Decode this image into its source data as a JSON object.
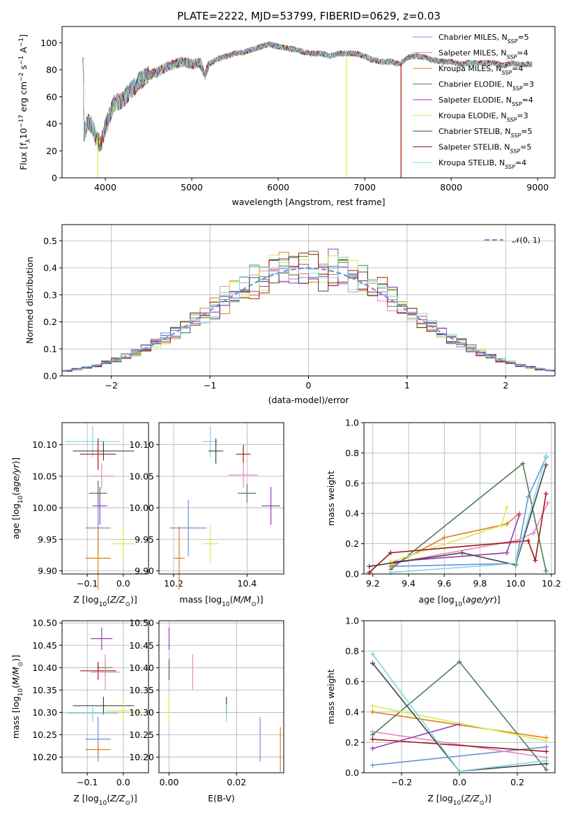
{
  "colors": {
    "chabrier_miles": "#6f8fd8",
    "salpeter_miles": "#e38ac3",
    "kroupa_miles": "#e07d1c",
    "chabrier_elodie": "#4d7f5a",
    "salpeter_elodie": "#9a3cb6",
    "kroupa_elodie": "#d4ec4a",
    "chabrier_stelib": "#444444",
    "salpeter_stelib": "#a01414",
    "kroupa_stelib": "#7fd8e0",
    "normal_curve": "#6f8fd8"
  },
  "chart_data": [
    {
      "type": "line",
      "title": "PLATE=2222, MJD=53799, FIBERID=0629, z=0.03",
      "xlabel": "wavelength [Angstrom, rest frame]",
      "ylabel": "Flux [fλ10⁻¹⁷ erg cm⁻² s⁻¹ A⁻¹]",
      "xlim": [
        3500,
        9200
      ],
      "ylim": [
        0,
        112
      ],
      "xticks": [
        4000,
        5000,
        6000,
        7000,
        8000,
        9000
      ],
      "yticks": [
        0,
        20,
        40,
        60,
        80,
        100
      ],
      "legend_position": "top-right",
      "grid": false,
      "legend": [
        {
          "label": "Chabrier MILES, N",
          "sub": "SSP",
          "suffix": "=5",
          "color_key": "chabrier_miles"
        },
        {
          "label": "Salpeter MILES, N",
          "sub": "SSP",
          "suffix": "=4",
          "color_key": "salpeter_miles"
        },
        {
          "label": "Kroupa MILES, N",
          "sub": "SSP",
          "suffix": "=4",
          "color_key": "kroupa_miles"
        },
        {
          "label": "Chabrier ELODIE, N",
          "sub": "SSP",
          "suffix": "=3",
          "color_key": "chabrier_elodie"
        },
        {
          "label": "Salpeter ELODIE, N",
          "sub": "SSP",
          "suffix": "=4",
          "color_key": "salpeter_elodie"
        },
        {
          "label": "Kroupa ELODIE, N",
          "sub": "SSP",
          "suffix": "=3",
          "color_key": "kroupa_elodie"
        },
        {
          "label": "Chabrier STELIB, N",
          "sub": "SSP",
          "suffix": "=5",
          "color_key": "chabrier_stelib"
        },
        {
          "label": "Salpeter STELIB, N",
          "sub": "SSP",
          "suffix": "=5",
          "color_key": "salpeter_stelib"
        },
        {
          "label": "Kroupa STELIB, N",
          "sub": "SSP",
          "suffix": "=4",
          "color_key": "kroupa_stelib"
        }
      ],
      "spectrum_anchors": [
        [
          3750,
          32
        ],
        [
          3800,
          42
        ],
        [
          3850,
          38
        ],
        [
          3900,
          28
        ],
        [
          3950,
          25
        ],
        [
          4000,
          38
        ],
        [
          4050,
          46
        ],
        [
          4100,
          55
        ],
        [
          4200,
          58
        ],
        [
          4300,
          65
        ],
        [
          4400,
          72
        ],
        [
          4500,
          76
        ],
        [
          4600,
          78
        ],
        [
          4700,
          82
        ],
        [
          4800,
          84
        ],
        [
          4900,
          86
        ],
        [
          5000,
          84
        ],
        [
          5100,
          85
        ],
        [
          5150,
          76
        ],
        [
          5200,
          84
        ],
        [
          5300,
          88
        ],
        [
          5400,
          90
        ],
        [
          5500,
          92
        ],
        [
          5600,
          93
        ],
        [
          5700,
          95
        ],
        [
          5800,
          97
        ],
        [
          5900,
          99
        ],
        [
          6000,
          97
        ],
        [
          6100,
          96
        ],
        [
          6200,
          95
        ],
        [
          6300,
          93
        ],
        [
          6400,
          92
        ],
        [
          6500,
          92
        ],
        [
          6600,
          90
        ],
        [
          6700,
          92
        ],
        [
          6800,
          92
        ],
        [
          6900,
          92
        ],
        [
          7000,
          90
        ],
        [
          7100,
          87
        ],
        [
          7200,
          86
        ],
        [
          7300,
          86
        ],
        [
          7400,
          84
        ],
        [
          7500,
          89
        ],
        [
          7600,
          90
        ],
        [
          7700,
          89
        ],
        [
          7800,
          87
        ],
        [
          7900,
          86
        ],
        [
          8000,
          86
        ],
        [
          8100,
          84
        ],
        [
          8200,
          85
        ],
        [
          8300,
          85
        ],
        [
          8400,
          85
        ],
        [
          8500,
          85
        ],
        [
          8600,
          83
        ],
        [
          8700,
          85
        ],
        [
          8800,
          84
        ],
        [
          8900,
          84
        ]
      ],
      "dips": [
        {
          "x": 3910,
          "color_key": "kroupa_elodie"
        },
        {
          "x": 6790,
          "color_key": "kroupa_elodie"
        },
        {
          "x": 7420,
          "color_key": "salpeter_stelib"
        }
      ]
    },
    {
      "type": "histogram",
      "xlabel": "(data-model)/error",
      "ylabel": "Normed distribution",
      "xlim": [
        -2.5,
        2.5
      ],
      "ylim": [
        0,
        0.56
      ],
      "xticks": [
        -2,
        -1,
        0,
        1,
        2
      ],
      "yticks": [
        0.0,
        0.1,
        0.2,
        0.3,
        0.4,
        0.5
      ],
      "grid": true,
      "legend_position": "top-right",
      "legend": [
        {
          "label": "𝒩(0, 1)",
          "color_key": "normal_curve",
          "style": "dashed"
        }
      ],
      "bin_width": 0.1,
      "series_color_keys": [
        "chabrier_miles",
        "salpeter_miles",
        "kroupa_miles",
        "chabrier_elodie",
        "salpeter_elodie",
        "kroupa_elodie",
        "chabrier_stelib",
        "salpeter_stelib",
        "kroupa_stelib"
      ]
    },
    {
      "type": "scatter-errorbar",
      "xlabel": "Z [log₁₀(Z/Z⊙)]",
      "ylabel": "age  [log₁₀(age/yr)]",
      "xlim": [
        -0.17,
        0.07
      ],
      "ylim": [
        9.895,
        10.135
      ],
      "xticks": [
        -0.1,
        0.0
      ],
      "yticks": [
        9.9,
        9.95,
        10.0,
        10.05,
        10.1
      ],
      "grid": true,
      "points": [
        {
          "color_key": "kroupa_stelib",
          "x": -0.085,
          "xerr": 0.075,
          "y": 10.105,
          "yerr": 0.025
        },
        {
          "color_key": "chabrier_stelib",
          "x": -0.055,
          "xerr": 0.085,
          "y": 10.09,
          "yerr": 0.015
        },
        {
          "color_key": "salpeter_stelib",
          "x": -0.07,
          "xerr": 0.05,
          "y": 10.085,
          "yerr": 0.025
        },
        {
          "color_key": "salpeter_miles",
          "x": -0.06,
          "xerr": 0.035,
          "y": 10.05,
          "yerr": 0.02
        },
        {
          "color_key": "chabrier_elodie",
          "x": -0.07,
          "xerr": 0.025,
          "y": 10.023,
          "yerr": 0.02
        },
        {
          "color_key": "salpeter_elodie",
          "x": -0.065,
          "xerr": 0.02,
          "y": 10.003,
          "yerr": 0.03
        },
        {
          "color_key": "chabrier_miles",
          "x": -0.07,
          "xerr": 0.035,
          "y": 9.968,
          "yerr": 0.045
        },
        {
          "color_key": "kroupa_elodie",
          "x": 0.0,
          "xerr": 0.03,
          "y": 9.943,
          "yerr": 0.03
        },
        {
          "color_key": "kroupa_miles",
          "x": -0.07,
          "xerr": 0.035,
          "y": 9.92,
          "yerr": 0.05
        }
      ]
    },
    {
      "type": "scatter-errorbar",
      "xlabel": "mass [log₁₀(M/M⊙)]",
      "ylabel": "",
      "xlim": [
        10.16,
        10.5
      ],
      "ylim": [
        9.895,
        10.135
      ],
      "xticks": [
        10.2,
        10.4
      ],
      "yticks": [
        9.9,
        9.95,
        10.0,
        10.05,
        10.1
      ],
      "grid": true,
      "points": [
        {
          "color_key": "kroupa_stelib",
          "x": 10.3,
          "xerr": 0.02,
          "y": 10.105,
          "yerr": 0.025
        },
        {
          "color_key": "chabrier_stelib",
          "x": 10.315,
          "xerr": 0.02,
          "y": 10.09,
          "yerr": 0.02
        },
        {
          "color_key": "salpeter_stelib",
          "x": 10.39,
          "xerr": 0.02,
          "y": 10.085,
          "yerr": 0.015
        },
        {
          "color_key": "salpeter_miles",
          "x": 10.39,
          "xerr": 0.04,
          "y": 10.052,
          "yerr": 0.02
        },
        {
          "color_key": "chabrier_elodie",
          "x": 10.4,
          "xerr": 0.025,
          "y": 10.023,
          "yerr": 0.015
        },
        {
          "color_key": "salpeter_elodie",
          "x": 10.465,
          "xerr": 0.025,
          "y": 10.003,
          "yerr": 0.03
        },
        {
          "color_key": "chabrier_miles",
          "x": 10.24,
          "xerr": 0.05,
          "y": 9.968,
          "yerr": 0.045
        },
        {
          "color_key": "kroupa_elodie",
          "x": 10.3,
          "xerr": 0.02,
          "y": 9.943,
          "yerr": 0.03
        },
        {
          "color_key": "kroupa_miles",
          "x": 10.215,
          "xerr": 0.015,
          "y": 9.92,
          "yerr": 0.05
        }
      ]
    },
    {
      "type": "line",
      "xlabel": "age  [log₁₀(age/yr)]",
      "ylabel": "mass weight",
      "xlim": [
        9.15,
        10.22
      ],
      "ylim": [
        0,
        1.0
      ],
      "xticks": [
        9.2,
        9.4,
        9.6,
        9.8,
        10.0,
        10.2
      ],
      "yticks": [
        0.0,
        0.2,
        0.4,
        0.6,
        0.8,
        1.0
      ],
      "grid": true,
      "series": [
        {
          "color_key": "chabrier_miles",
          "x": [
            9.3,
            10.0,
            10.07,
            10.17
          ],
          "y": [
            0.05,
            0.07,
            0.51,
            0.77
          ]
        },
        {
          "color_key": "salpeter_miles",
          "x": [
            9.3,
            10.0,
            10.1,
            10.18
          ],
          "y": [
            0.07,
            0.22,
            0.27,
            0.47
          ]
        },
        {
          "color_key": "kroupa_miles",
          "x": [
            9.3,
            9.6,
            9.95,
            10.02
          ],
          "y": [
            0.05,
            0.24,
            0.33,
            0.4
          ]
        },
        {
          "color_key": "chabrier_elodie",
          "x": [
            9.3,
            10.04,
            10.17
          ],
          "y": [
            0.03,
            0.73,
            0.02
          ]
        },
        {
          "color_key": "salpeter_elodie",
          "x": [
            9.3,
            9.95,
            10.02
          ],
          "y": [
            0.08,
            0.14,
            0.39
          ]
        },
        {
          "color_key": "kroupa_elodie",
          "x": [
            9.3,
            9.92,
            9.95
          ],
          "y": [
            0.08,
            0.32,
            0.44
          ]
        },
        {
          "color_key": "chabrier_stelib",
          "x": [
            9.18,
            9.7,
            10.0,
            10.17
          ],
          "y": [
            0.05,
            0.14,
            0.06,
            0.72
          ]
        },
        {
          "color_key": "salpeter_stelib",
          "x": [
            9.18,
            9.3,
            10.07,
            10.11,
            10.17
          ],
          "y": [
            0.01,
            0.14,
            0.22,
            0.09,
            0.53
          ]
        },
        {
          "color_key": "kroupa_stelib",
          "x": [
            9.3,
            10.0,
            10.17
          ],
          "y": [
            0.01,
            0.07,
            0.78
          ]
        }
      ]
    },
    {
      "type": "scatter-errorbar",
      "xlabel": "Z [log₁₀(Z/Z⊙)]",
      "ylabel": "mass [log₁₀(M/M⊙)]",
      "xlim": [
        -0.17,
        0.07
      ],
      "ylim": [
        10.165,
        10.505
      ],
      "xticks": [
        -0.1,
        0.0
      ],
      "yticks": [
        10.2,
        10.25,
        10.3,
        10.35,
        10.4,
        10.45,
        10.5
      ],
      "grid": true,
      "points": [
        {
          "color_key": "salpeter_elodie",
          "x": -0.06,
          "xerr": 0.03,
          "y": 10.465,
          "yerr": 0.025
        },
        {
          "color_key": "chabrier_elodie",
          "x": -0.05,
          "xerr": 0.02,
          "y": 10.4,
          "yerr": 0.02
        },
        {
          "color_key": "salpeter_stelib",
          "x": -0.07,
          "xerr": 0.05,
          "y": 10.393,
          "yerr": 0.02
        },
        {
          "color_key": "salpeter_miles",
          "x": -0.05,
          "xerr": 0.04,
          "y": 10.39,
          "yerr": 0.04
        },
        {
          "color_key": "chabrier_stelib",
          "x": -0.055,
          "xerr": 0.085,
          "y": 10.315,
          "yerr": 0.02
        },
        {
          "color_key": "kroupa_elodie",
          "x": 0.0,
          "xerr": 0.05,
          "y": 10.303,
          "yerr": 0.03
        },
        {
          "color_key": "kroupa_stelib",
          "x": -0.085,
          "xerr": 0.07,
          "y": 10.298,
          "yerr": 0.02
        },
        {
          "color_key": "chabrier_miles",
          "x": -0.07,
          "xerr": 0.035,
          "y": 10.24,
          "yerr": 0.05
        },
        {
          "color_key": "kroupa_miles",
          "x": -0.07,
          "xerr": 0.035,
          "y": 10.217,
          "yerr": 0.015
        }
      ]
    },
    {
      "type": "scatter-errorbar",
      "xlabel": "E(B-V)",
      "ylabel": "",
      "xlim": [
        -0.003,
        0.034
      ],
      "ylim": [
        10.165,
        10.505
      ],
      "xticks": [
        0.0,
        0.02
      ],
      "yticks": [
        10.2,
        10.25,
        10.3,
        10.35,
        10.4,
        10.45,
        10.5
      ],
      "grid": true,
      "points": [
        {
          "color_key": "salpeter_elodie",
          "x": 0.0,
          "xerr": 0,
          "y": 10.465,
          "yerr": 0.025
        },
        {
          "color_key": "salpeter_miles",
          "x": 0.007,
          "xerr": 0,
          "y": 10.39,
          "yerr": 0.04
        },
        {
          "color_key": "salpeter_stelib",
          "x": 0.0,
          "xerr": 0,
          "y": 10.393,
          "yerr": 0.02
        },
        {
          "color_key": "chabrier_elodie",
          "x": 0.0,
          "xerr": 0,
          "y": 10.4,
          "yerr": 0.02
        },
        {
          "color_key": "kroupa_elodie",
          "x": 0.0,
          "xerr": 0,
          "y": 10.303,
          "yerr": 0.03
        },
        {
          "color_key": "chabrier_stelib",
          "x": 0.017,
          "xerr": 0,
          "y": 10.315,
          "yerr": 0.02
        },
        {
          "color_key": "kroupa_stelib",
          "x": 0.017,
          "xerr": 0,
          "y": 10.298,
          "yerr": 0.02
        },
        {
          "color_key": "chabrier_miles",
          "x": 0.027,
          "xerr": 0,
          "y": 10.24,
          "yerr": 0.05
        },
        {
          "color_key": "kroupa_miles",
          "x": 0.033,
          "xerr": 0,
          "y": 10.217,
          "yerr": 0.05
        }
      ]
    },
    {
      "type": "line",
      "xlabel": "Z [log₁₀(Z/Z⊙)]",
      "ylabel": "mass weight",
      "xlim": [
        -0.33,
        0.33
      ],
      "ylim": [
        0,
        1.0
      ],
      "xticks": [
        -0.2,
        0.0,
        0.2
      ],
      "yticks": [
        0.0,
        0.2,
        0.4,
        0.6,
        0.8,
        1.0
      ],
      "grid": true,
      "series": [
        {
          "color_key": "chabrier_miles",
          "x": [
            -0.3,
            0.3
          ],
          "y": [
            0.05,
            0.17
          ]
        },
        {
          "color_key": "salpeter_miles",
          "x": [
            -0.3,
            0.3
          ],
          "y": [
            0.27,
            0.1
          ]
        },
        {
          "color_key": "kroupa_miles",
          "x": [
            -0.3,
            0.3
          ],
          "y": [
            0.4,
            0.23
          ]
        },
        {
          "color_key": "chabrier_elodie",
          "x": [
            -0.3,
            0.0,
            0.3
          ],
          "y": [
            0.25,
            0.73,
            0.02
          ]
        },
        {
          "color_key": "salpeter_elodie",
          "x": [
            -0.3,
            0.0
          ],
          "y": [
            0.16,
            0.32
          ]
        },
        {
          "color_key": "kroupa_elodie",
          "x": [
            -0.3,
            0.3
          ],
          "y": [
            0.44,
            0.21
          ]
        },
        {
          "color_key": "chabrier_stelib",
          "x": [
            -0.3,
            0.0,
            0.3
          ],
          "y": [
            0.72,
            0.01,
            0.06
          ]
        },
        {
          "color_key": "salpeter_stelib",
          "x": [
            -0.3,
            0.3
          ],
          "y": [
            0.22,
            0.14
          ]
        },
        {
          "color_key": "kroupa_stelib",
          "x": [
            -0.3,
            0.0,
            0.3
          ],
          "y": [
            0.78,
            0.01,
            0.08
          ]
        }
      ]
    }
  ]
}
